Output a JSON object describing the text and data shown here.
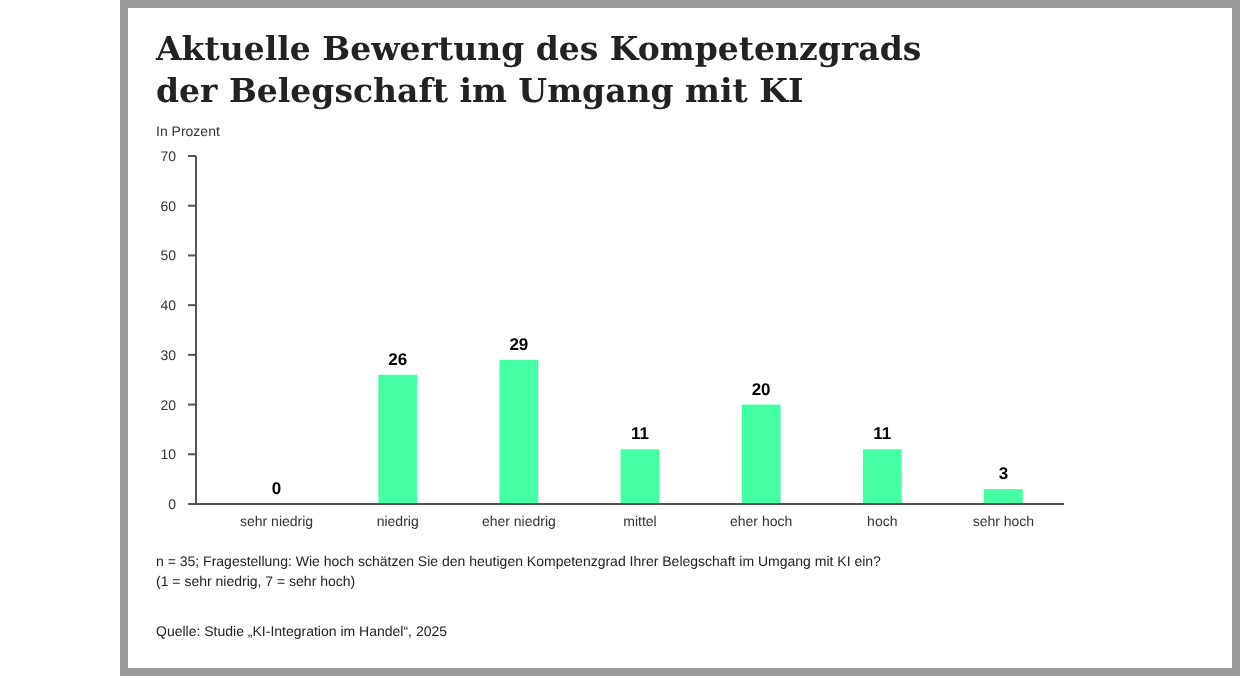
{
  "chart_data": {
    "type": "bar",
    "title": "Aktuelle Bewertung des Kompetenzgrads\nder Belegschaft im Umgang mit KI",
    "ylabel": "In Prozent",
    "categories": [
      "sehr niedrig",
      "niedrig",
      "eher niedrig",
      "mittel",
      "eher hoch",
      "hoch",
      "sehr hoch"
    ],
    "values": [
      0,
      26,
      29,
      11,
      20,
      11,
      3
    ],
    "color": "#45ffa4",
    "data_labels": true,
    "ylim": [
      0,
      70
    ],
    "yticks": [
      0,
      10,
      20,
      30,
      40,
      50,
      60,
      70
    ],
    "grid": false,
    "annotations": [
      "n = 35; Fragestellung: Wie hoch schätzen Sie den heutigen Kompetenzgrad Ihrer Belegschaft im Umgang mit KI ein?",
      "(1 = sehr niedrig, 7 = sehr hoch)",
      "Quelle: Studie „KI-Integration im Handel“, 2025"
    ]
  }
}
